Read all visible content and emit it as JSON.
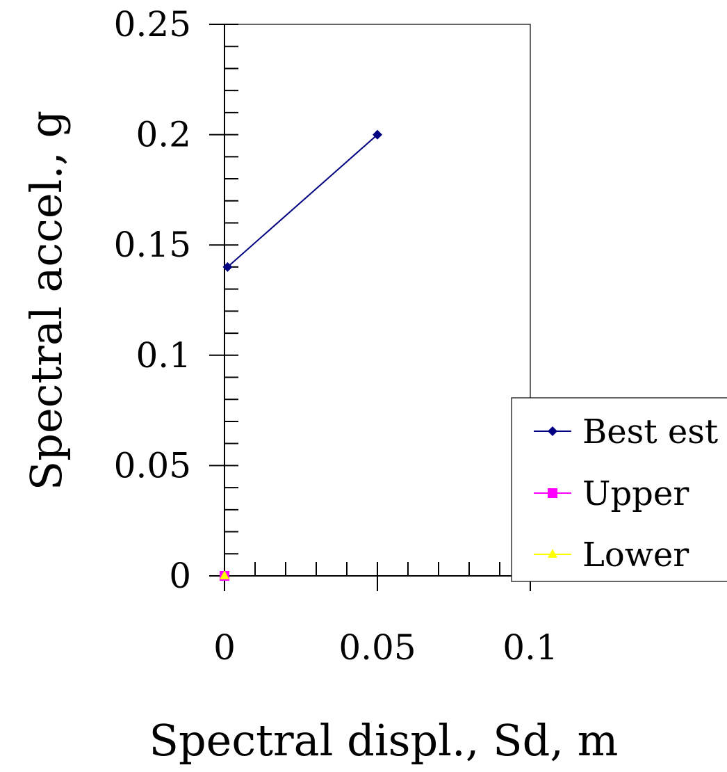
{
  "chart_data": {
    "type": "line",
    "xlabel": "Spectral displ., Sd, m",
    "ylabel": "Spectral accel., g",
    "xlim": [
      0,
      0.1
    ],
    "ylim": [
      0,
      0.25
    ],
    "x_ticks": [
      "0",
      "0.05",
      "0.1"
    ],
    "x_tick_values": [
      0,
      0.05,
      0.1
    ],
    "y_ticks": [
      "0",
      "0.05",
      "0.1",
      "0.15",
      "0.2",
      "0.25"
    ],
    "y_tick_values": [
      0,
      0.05,
      0.1,
      0.15,
      0.2,
      0.25
    ],
    "grid": false,
    "legend_position": "bottom-right",
    "series": [
      {
        "name": "Best est",
        "color": "#000080",
        "marker": "diamond",
        "points": [
          [
            0.001,
            0.14
          ],
          [
            0.05,
            0.2
          ]
        ]
      },
      {
        "name": "Upper",
        "color": "#FF00FF",
        "marker": "square",
        "points": [
          [
            0,
            0
          ]
        ]
      },
      {
        "name": "Lower",
        "color": "#FFFF00",
        "marker": "triangle",
        "points": [
          [
            0,
            0
          ]
        ]
      }
    ]
  }
}
